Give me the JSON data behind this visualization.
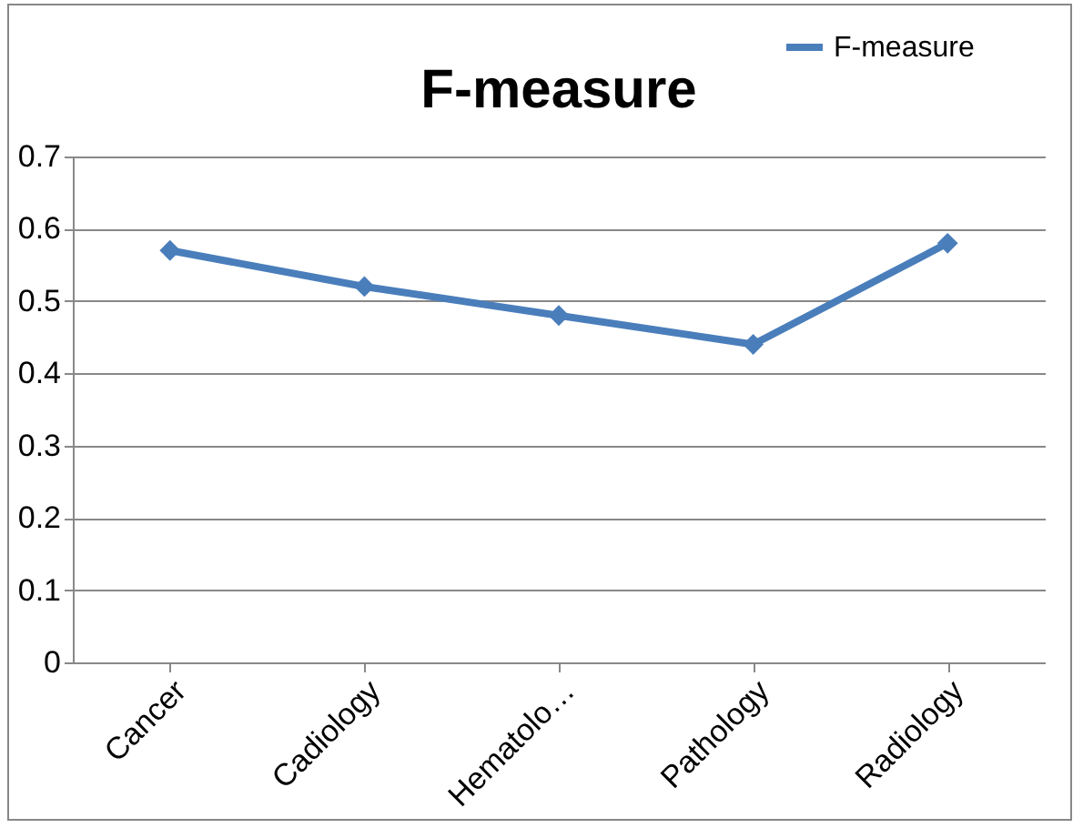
{
  "chart_data": {
    "type": "line",
    "title": "F-measure",
    "categories": [
      "Cancer",
      "Cadiology",
      "Hematolo…",
      "Pathology",
      "Radiology"
    ],
    "series": [
      {
        "name": "F-measure",
        "color": "#4a7ebb",
        "values": [
          0.57,
          0.52,
          0.48,
          0.44,
          0.58
        ]
      }
    ],
    "ylim": [
      0,
      0.7
    ],
    "yticks": [
      0,
      0.1,
      0.2,
      0.3,
      0.4,
      0.5,
      0.6,
      0.7
    ],
    "grid": "y",
    "legend": "top right",
    "marker": "diamond",
    "line_style": "solid"
  }
}
